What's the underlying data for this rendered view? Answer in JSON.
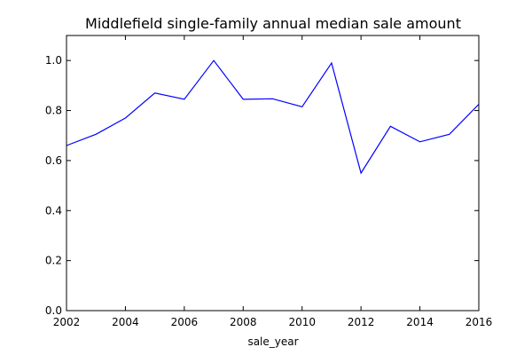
{
  "chart_data": {
    "type": "line",
    "title": "Middlefield single-family annual median sale amount",
    "xlabel": "sale_year",
    "ylabel": "",
    "xlim": [
      2002,
      2016
    ],
    "ylim": [
      0.0,
      1.1
    ],
    "x_ticks": [
      2002,
      2004,
      2006,
      2008,
      2010,
      2012,
      2014,
      2016
    ],
    "x_tick_labels": [
      "2002",
      "2004",
      "2006",
      "2008",
      "2010",
      "2012",
      "2014",
      "2016"
    ],
    "y_ticks": [
      0.0,
      0.2,
      0.4,
      0.6,
      0.8,
      1.0
    ],
    "y_tick_labels": [
      "0.0",
      "0.2",
      "0.4",
      "0.6",
      "0.8",
      "1.0"
    ],
    "grid": false,
    "legend": false,
    "line_color": "#0000ff",
    "series": [
      {
        "x": [
          2002,
          2003,
          2004,
          2005,
          2006,
          2007,
          2008,
          2009,
          2010,
          2011,
          2012,
          2013,
          2014,
          2015,
          2016
        ],
        "y": [
          0.66,
          0.705,
          0.77,
          0.87,
          0.845,
          1.0,
          0.845,
          0.847,
          0.815,
          0.99,
          0.55,
          0.737,
          0.675,
          0.705,
          0.825
        ]
      }
    ]
  }
}
